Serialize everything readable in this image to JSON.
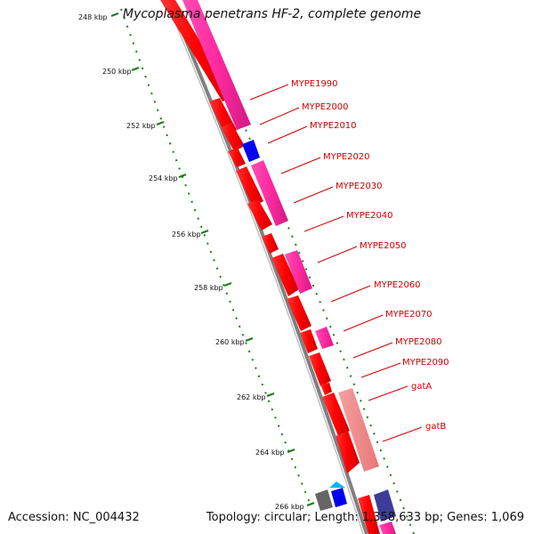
{
  "title": "Mycoplasma penetrans HF-2, complete genome",
  "accession": "Accession: NC_004432",
  "summary": "Topology: circular; Length: 1,358,633 bp; Genes: 1,069",
  "ticks": [
    "248 kbp",
    "250 kbp",
    "252 kbp",
    "254 kbp",
    "256 kbp",
    "258 kbp",
    "260 kbp",
    "262 kbp",
    "264 kbp",
    "266 kbp"
  ],
  "gene_labels": [
    "MYPE1990",
    "MYPE2000",
    "MYPE2010",
    "MYPE2020",
    "MYPE2030",
    "MYPE2040",
    "MYPE2050",
    "MYPE2060",
    "MYPE2070",
    "MYPE2080",
    "MYPE2090",
    "gatA",
    "gatB"
  ],
  "colors": {
    "gene_red": "#ff0000",
    "gene_pink": "#ff2aa0",
    "gene_blue": "#0000ee",
    "gene_salmon": "#f08080",
    "backbone_grey": "#777777",
    "tick_green": "#1a7f1a",
    "label_red": "#cc0000"
  }
}
